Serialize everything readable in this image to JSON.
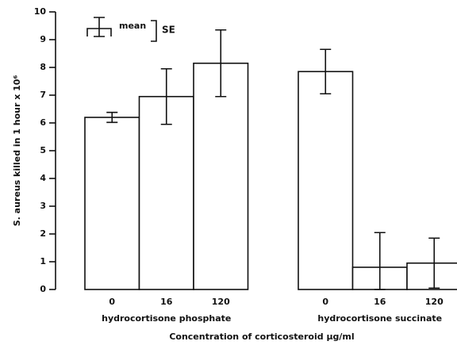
{
  "chart_data": {
    "type": "bar",
    "ylabel": "S. aureus killed in 1 hour x 10⁶",
    "xlabel": "Concentration of corticosteroid μg/ml",
    "ylim": [
      0,
      10
    ],
    "yticks": [
      0,
      1,
      2,
      3,
      4,
      5,
      6,
      7,
      8,
      9,
      10
    ],
    "legend": {
      "mean": "mean",
      "se": "SE"
    },
    "color": "#ffffff",
    "groups": [
      {
        "label": "hydrocortisone phosphate",
        "categories": [
          "0",
          "16",
          "120"
        ],
        "values": [
          6.2,
          6.95,
          8.15
        ],
        "errors": [
          0.18,
          1.0,
          1.2
        ]
      },
      {
        "label": "hydrocortisone succinate",
        "categories": [
          "0",
          "16",
          "120"
        ],
        "values": [
          7.85,
          0.8,
          0.95
        ],
        "errors": [
          0.8,
          1.25,
          0.9
        ]
      }
    ]
  }
}
